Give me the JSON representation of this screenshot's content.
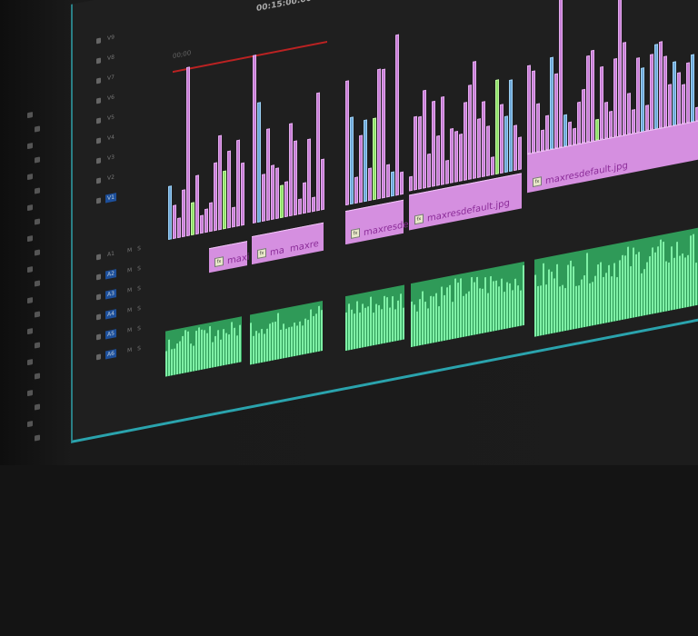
{
  "timeline": {
    "timecode": "00:15:00:00",
    "start_timecode": "00;00",
    "ruler_color": "#b22222"
  },
  "tracks": [
    {
      "name": "V9"
    },
    {
      "name": "V8"
    },
    {
      "name": "V7"
    },
    {
      "name": "V6"
    },
    {
      "name": "V5"
    },
    {
      "name": "V4"
    },
    {
      "name": "V3"
    },
    {
      "name": "V2"
    },
    {
      "name": "V1",
      "active": true
    },
    {
      "name": "A1",
      "audio": true
    },
    {
      "name": "A2",
      "audio": true,
      "active": true
    },
    {
      "name": "A3",
      "audio": true,
      "active": true
    },
    {
      "name": "A4",
      "audio": true,
      "active": true
    },
    {
      "name": "A5",
      "audio": true,
      "active": true
    },
    {
      "name": "A6",
      "audio": true,
      "active": true
    }
  ],
  "track_controls": {
    "mute": "M",
    "solo": "S"
  },
  "video_clips": [
    {
      "label": "maxi",
      "fx": "fx"
    },
    {
      "label": "maxi",
      "fx": "fx"
    },
    {
      "label": "maxre",
      "fx": "fx"
    },
    {
      "label": "maxresde",
      "fx": "fx"
    },
    {
      "label": "maxresdefault.jpg",
      "fx": "fx"
    },
    {
      "label": "maxresdefault.jpg",
      "fx": "fx"
    }
  ],
  "colors": {
    "video_clip": "#d58fe0",
    "audio_clip": "#2f9a58",
    "waveform": "#7ff0a6",
    "panel_border": "#2aa3ad",
    "track_active": "#1d4f9a"
  }
}
